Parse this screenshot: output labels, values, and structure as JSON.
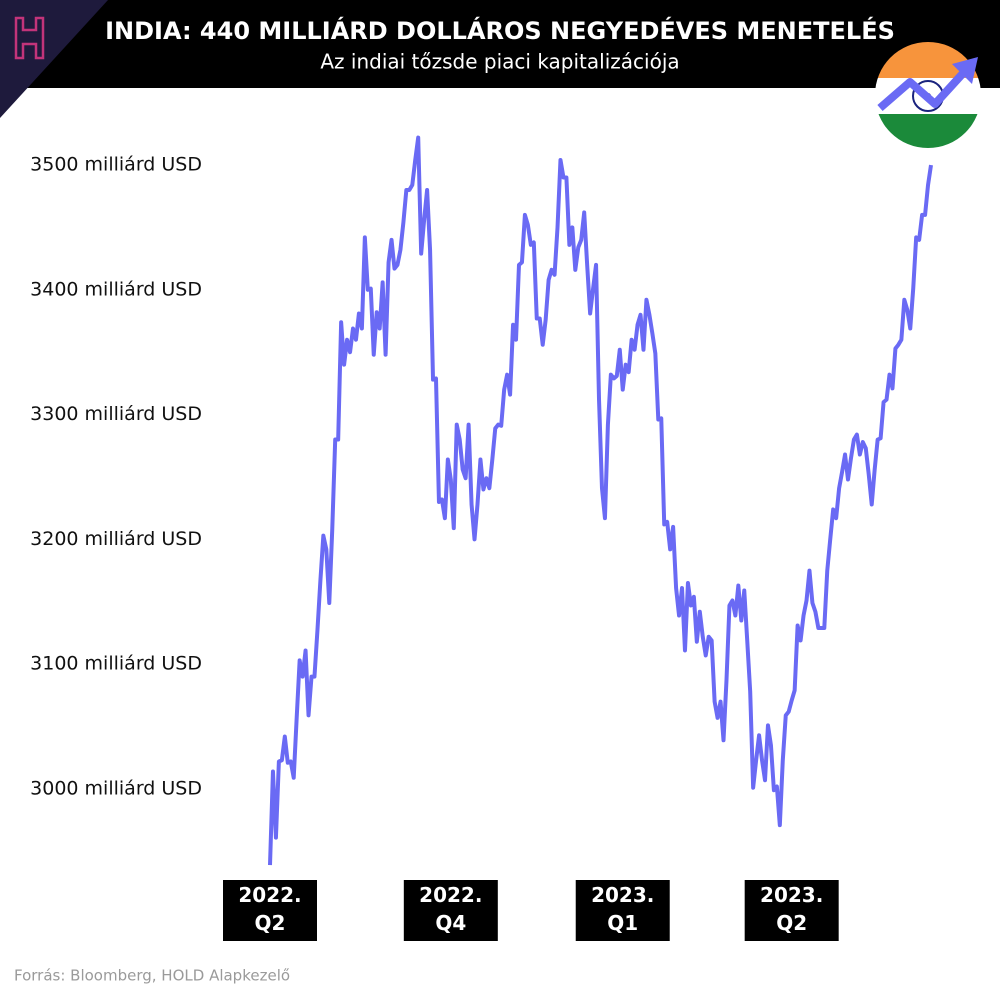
{
  "chart_data": {
    "type": "line",
    "title": "INDIA: 440 MILLIÁRD DOLLÁROS NEGYEDÉVES MENETELÉS",
    "subtitle": "Az indiai tőzsde piaci kapitalizációja",
    "source": "Forrás: Bloomberg, HOLD Alapkezelő",
    "color": "#6a6af4",
    "ylim": [
      2920,
      3540
    ],
    "yticks": [
      {
        "value": 3000,
        "label": "3000 milliárd USD"
      },
      {
        "value": 3100,
        "label": "3100 milliárd USD"
      },
      {
        "value": 3200,
        "label": "3200 milliárd USD"
      },
      {
        "value": 3300,
        "label": "3300 milliárd USD"
      },
      {
        "value": 3400,
        "label": "3400 milliárd USD"
      },
      {
        "value": 3500,
        "label": "3500 milliárd USD"
      }
    ],
    "categories": [
      "2022.\nQ2",
      null,
      null,
      null,
      null,
      null,
      null,
      null,
      null,
      null,
      null,
      null,
      null,
      null,
      null,
      null,
      null,
      null,
      null,
      null,
      null,
      null,
      null,
      null,
      null,
      null,
      null,
      null,
      null,
      null,
      null,
      null,
      null,
      null,
      null,
      null,
      null,
      null,
      null,
      null,
      null,
      null,
      null,
      null,
      null,
      null,
      null,
      null,
      null,
      null,
      null,
      null,
      null,
      null,
      null,
      null,
      null,
      null,
      null,
      null,
      null,
      "2022.\nQ4",
      null,
      null,
      null,
      null,
      null,
      null,
      null,
      null,
      null,
      null,
      null,
      null,
      null,
      null,
      null,
      null,
      null,
      null,
      null,
      null,
      null,
      null,
      null,
      null,
      null,
      null,
      null,
      null,
      null,
      null,
      null,
      null,
      null,
      null,
      null,
      null,
      null,
      null,
      null,
      null,
      null,
      null,
      null,
      null,
      null,
      null,
      null,
      null,
      null,
      null,
      null,
      null,
      null,
      null,
      null,
      null,
      null,
      "2023.\nQ1",
      null,
      null,
      null,
      null,
      null,
      null,
      null,
      null,
      null,
      null,
      null,
      null,
      null,
      null,
      null,
      null,
      null,
      null,
      null,
      null,
      null,
      null,
      null,
      null,
      null,
      null,
      null,
      null,
      null,
      null,
      null,
      null,
      null,
      null,
      null,
      null,
      null,
      null,
      null,
      null,
      null,
      null,
      null,
      null,
      null,
      null,
      null,
      null,
      null,
      null,
      null,
      null,
      null,
      null,
      null,
      null,
      "2023.\nQ2",
      null,
      null,
      null,
      null,
      null,
      null,
      null,
      null,
      null,
      null,
      null,
      null,
      null,
      null,
      null,
      null,
      null,
      null,
      null,
      null,
      null,
      null,
      null,
      null,
      null,
      null,
      null,
      null,
      null,
      null,
      null,
      null,
      null,
      null,
      null,
      null,
      null,
      null,
      null,
      null,
      null,
      null,
      null,
      null,
      null,
      null,
      null
    ],
    "values": [
      2939,
      3014,
      2961,
      3022,
      3023,
      3042,
      3021,
      3022,
      3009,
      3057,
      3103,
      3090,
      3111,
      3059,
      3090,
      3090,
      3127,
      3167,
      3203,
      3192,
      3149,
      3208,
      3280,
      3280,
      3374,
      3340,
      3360,
      3350,
      3369,
      3360,
      3381,
      3369,
      3442,
      3400,
      3401,
      3348,
      3382,
      3369,
      3406,
      3348,
      3422,
      3440,
      3417,
      3420,
      3432,
      3454,
      3480,
      3480,
      3484,
      3504,
      3522,
      3429,
      3456,
      3480,
      3432,
      3328,
      3329,
      3230,
      3232,
      3217,
      3264,
      3248,
      3209,
      3292,
      3280,
      3256,
      3249,
      3292,
      3228,
      3200,
      3228,
      3264,
      3240,
      3249,
      3241,
      3264,
      3289,
      3292,
      3291,
      3320,
      3332,
      3316,
      3372,
      3360,
      3420,
      3422,
      3460,
      3452,
      3436,
      3438,
      3377,
      3377,
      3356,
      3376,
      3408,
      3416,
      3412,
      3450,
      3504,
      3490,
      3490,
      3436,
      3450,
      3416,
      3434,
      3440,
      3462,
      3420,
      3381,
      3401,
      3420,
      3312,
      3241,
      3217,
      3292,
      3332,
      3329,
      3331,
      3352,
      3320,
      3340,
      3334,
      3360,
      3352,
      3372,
      3380,
      3352,
      3392,
      3380,
      3365,
      3349,
      3296,
      3297,
      3212,
      3214,
      3192,
      3210,
      3161,
      3139,
      3161,
      3111,
      3165,
      3147,
      3154,
      3118,
      3142,
      3122,
      3107,
      3122,
      3119,
      3070,
      3057,
      3070,
      3039,
      3087,
      3147,
      3151,
      3139,
      3163,
      3135,
      3159,
      3119,
      3078,
      3001,
      3023,
      3043,
      3023,
      3007,
      3051,
      3035,
      2999,
      3002,
      2971,
      3023,
      3059,
      3062,
      3071,
      3079,
      3131,
      3119,
      3139,
      3151,
      3175,
      3149,
      3142,
      3129,
      3129,
      3129,
      3175,
      3200,
      3224,
      3217,
      3241,
      3254,
      3268,
      3248,
      3265,
      3280,
      3284,
      3268,
      3278,
      3273,
      3252,
      3228,
      3256,
      3280,
      3281,
      3310,
      3312,
      3332,
      3321,
      3353,
      3356,
      3360,
      3392,
      3384,
      3369,
      3401,
      3442,
      3440,
      3460,
      3460,
      3484,
      3500
    ]
  }
}
